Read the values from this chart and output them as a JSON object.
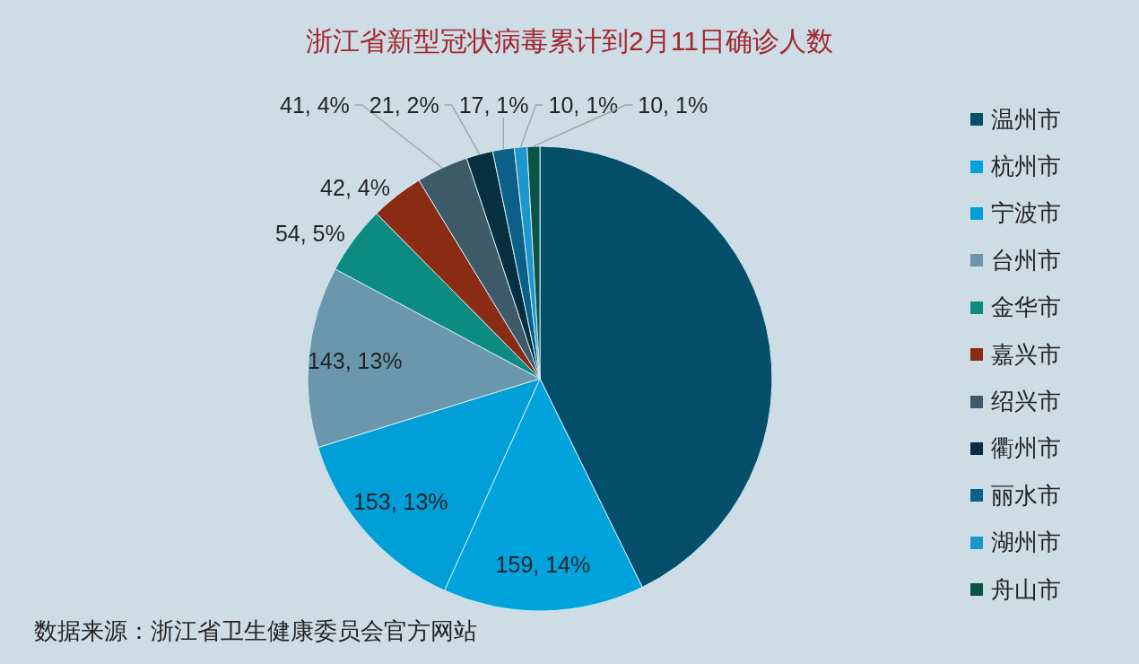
{
  "chart_data": {
    "type": "pie",
    "title": "浙江省新型冠状病毒累计到2月11日确诊人数",
    "categories": [
      "温州市",
      "杭州市",
      "宁波市",
      "台州市",
      "金华市",
      "嘉兴市",
      "绍兴市",
      "衢州市",
      "丽水市",
      "湖州市",
      "舟山市"
    ],
    "values": [
      485,
      159,
      153,
      143,
      54,
      42,
      41,
      21,
      17,
      10,
      10
    ],
    "colors": [
      "#064f6b",
      "#00a3dc",
      "#009fd7",
      "#6a97ac",
      "#0c8b80",
      "#8a2b14",
      "#3e5a69",
      "#062f3f",
      "#0c6088",
      "#1d95cd",
      "#0b5345"
    ],
    "value_labels": [
      null,
      "159, 14%",
      "153, 13%",
      "143, 13%",
      "54, 5%",
      "42, 4%",
      "41, 4%",
      "21, 2%",
      "17, 1%",
      "10, 1%",
      "10, 1%"
    ],
    "legend": "right",
    "annotations": [
      "数据来源：浙江省卫生健康委员会官方网站"
    ]
  }
}
